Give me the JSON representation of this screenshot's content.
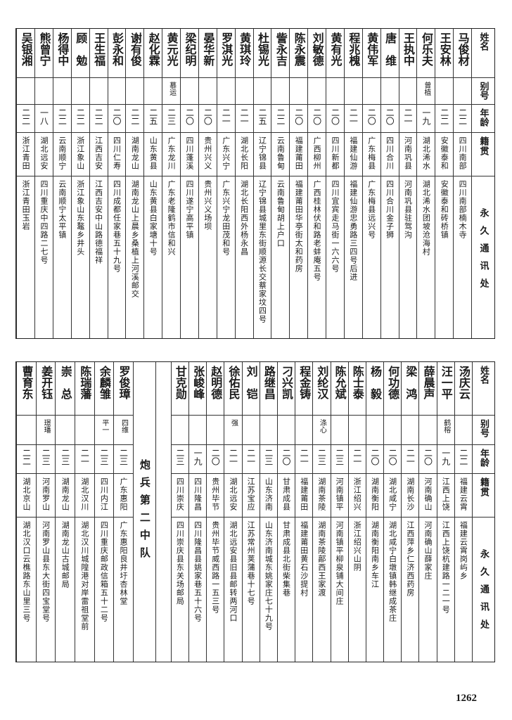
{
  "headers": {
    "name": "姓名",
    "alias": "别号",
    "age": "年龄",
    "origin": "籍贯",
    "address": "永久通讯处"
  },
  "top_table": {
    "rows": [
      {
        "name": "马俊材",
        "alias": "",
        "age": "二二",
        "origin": "四川南部",
        "address": "四川南部楠木寺"
      },
      {
        "name": "王安林",
        "alias": "",
        "age": "二二",
        "origin": "安徽泰和",
        "address": "安徽泰和砖桥镇"
      },
      {
        "name": "何乐夫",
        "alias": "曾植",
        "age": "一九",
        "origin": "湖北浠水",
        "address": "湖北浠水团坡沧海村"
      },
      {
        "name": "王执中",
        "alias": "",
        "age": "二一",
        "origin": "河南巩县",
        "address": "河南巩县驻驾沟"
      },
      {
        "name": "唐　维",
        "alias": "",
        "age": "二〇",
        "origin": "四川合川",
        "address": "四川合川金子狮"
      },
      {
        "name": "黄伟军",
        "alias": "",
        "age": "二〇",
        "origin": "广东梅县",
        "address": "广东梅县远兴号"
      },
      {
        "name": "程兆槐",
        "alias": "",
        "age": "二一",
        "origin": "福建仙游",
        "address": "福建仙游忠勇路三四号后进"
      },
      {
        "name": "黄有光",
        "alias": "",
        "age": "二〇",
        "origin": "四川新都",
        "address": "四川宜宾走马街一六六号"
      },
      {
        "name": "刘敏德",
        "alias": "",
        "age": "二〇",
        "origin": "广西柳州",
        "address": "广西桂林伏和路老蚌庵五号"
      },
      {
        "name": "陈永震",
        "alias": "",
        "age": "二〇",
        "origin": "福建莆田",
        "address": "福建莆田华亭街太和药房"
      },
      {
        "name": "訾永吉",
        "alias": "",
        "age": "二二",
        "origin": "云南鲁甸",
        "address": "云南鲁甸胡上户口"
      },
      {
        "name": "杜锡光",
        "alias": "",
        "age": "二五",
        "origin": "辽宁锦县",
        "address": "辽宁锦县城里东街顺源长交蔡家坟四号"
      },
      {
        "name": "黄琪玲",
        "alias": "",
        "age": "二一",
        "origin": "湖北长阳",
        "address": "湖北长阳西外杨永昌"
      },
      {
        "name": "罗淇光",
        "alias": "",
        "age": "二一",
        "origin": "广东兴宁",
        "address": "广东兴宁龙田茂和号"
      },
      {
        "name": "晏华新",
        "alias": "",
        "age": "二〇",
        "origin": "贵州兴义",
        "address": "贵州兴义场坝"
      },
      {
        "name": "梁纪明",
        "alias": "",
        "age": "二〇",
        "origin": "四川蓬溪",
        "address": "四川遂宁高平镇"
      },
      {
        "name": "黄元光",
        "alias": "慕运",
        "age": "二三",
        "origin": "广东龙川",
        "address": "广东老隆鹤市信和兴"
      },
      {
        "name": "赵化霖",
        "alias": "",
        "age": "二五",
        "origin": "山东黄县",
        "address": "山东黄县白家塘十号"
      },
      {
        "name": "谢有俊",
        "alias": "",
        "age": "二二",
        "origin": "湖南龙山",
        "address": "湖南龙山上晨乡桑植上河溪邮交"
      },
      {
        "name": "彭永和",
        "alias": "",
        "age": "二〇",
        "origin": "四川仁寿",
        "address": "四川成都任家巷五十九号"
      },
      {
        "name": "王生福",
        "alias": "",
        "age": "二二",
        "origin": "江西吉安",
        "address": "江西吉安中山路德福祥"
      },
      {
        "name": "顾　勉",
        "alias": "",
        "age": "二二",
        "origin": "浙江象山",
        "address": "浙江象山东鼇乡井头"
      },
      {
        "name": "杨得中",
        "alias": "",
        "age": "二二",
        "origin": "云南顺宁",
        "address": "云南顺宁太平镇"
      },
      {
        "name": "熊曾宁",
        "alias": "",
        "age": "一八",
        "origin": "湖北远安",
        "address": "四川重庆中四路二七号"
      },
      {
        "name": "吴银湘",
        "alias": "",
        "age": "二二",
        "origin": "浙江青田",
        "address": "浙江青田玉岩"
      }
    ]
  },
  "bottom_table": {
    "rows": [
      {
        "name": "汤庆云",
        "alias": "",
        "age": "二二",
        "origin": "福建云霄",
        "address": "福建云霄岗屿乡"
      },
      {
        "name": "汪一平",
        "alias": "鹤榕",
        "age": "一九",
        "origin": "江西上饶",
        "address": "江西上饶杭建路一二一号"
      },
      {
        "name": "薛晨声",
        "alias": "",
        "age": "二〇",
        "origin": "河南确山",
        "address": "河南确山薛家庄"
      },
      {
        "name": "梁　鸿",
        "alias": "",
        "age": "二一",
        "origin": "湖南长沙",
        "address": "江西萍乡仁济西药房"
      },
      {
        "name": "何功德",
        "alias": "",
        "age": "二〇",
        "origin": "湖北咸宁",
        "address": "湖北咸宁白墩镇韩继成茶庄"
      },
      {
        "name": "杨　毅",
        "alias": "",
        "age": "二〇",
        "origin": "湖南衡阳",
        "address": "湖南衡阳南乡车江"
      },
      {
        "name": "陈士泰",
        "alias": "",
        "age": "二一",
        "origin": "浙江绍兴",
        "address": "浙江绍兴山阴"
      },
      {
        "name": "陈允斌",
        "alias": "",
        "age": "二三",
        "origin": "河南镇平",
        "address": "河南镇平柳泉铺大间庄"
      },
      {
        "name": "刘纶汉",
        "alias": "涤心",
        "age": "二三",
        "origin": "湖南茶陵",
        "address": "湖南茶陵鄗西王家渡"
      },
      {
        "name": "程金铸",
        "alias": "",
        "age": "二一",
        "origin": "福建莆田",
        "address": "福建莆田黄石沙提村"
      },
      {
        "name": "刁兴凯",
        "alias": "",
        "age": "二〇",
        "origin": "甘肃成县",
        "address": "甘肃成县北街柴集巷"
      },
      {
        "name": "路继昌",
        "alias": "",
        "age": "二三",
        "origin": "山东济南",
        "address": "山东济南城东姚家庄七十九号"
      },
      {
        "name": "刘　铠",
        "alias": "",
        "age": "二一",
        "origin": "江苏宝应",
        "address": "江苏常州荚蒲巷十七号"
      },
      {
        "name": "徐佑民",
        "alias": "强",
        "age": "二一",
        "origin": "湖北远安",
        "address": "湖北远安县旧县邮转两河口"
      },
      {
        "name": "赵明德",
        "alias": "",
        "age": "二〇",
        "origin": "贵州毕节",
        "address": "贵州毕节威西路一五三号"
      },
      {
        "name": "张峻峰",
        "alias": "",
        "age": "一九",
        "origin": "四川隆昌",
        "address": "四川隆昌县姚家巷五十六号"
      },
      {
        "name": "甘克勋",
        "alias": "",
        "age": "二三",
        "origin": "四川崇庆",
        "address": "四川崇庆县东关场邮局"
      }
    ],
    "section_label": "炮兵第二中队",
    "rows_after": [
      {
        "name": "罗俊璋",
        "alias": "四维",
        "age": "二三",
        "origin": "广东惠阳",
        "address": "广东惠阳良井圩杏林堂"
      },
      {
        "name": "余麟雏",
        "alias": "平一",
        "age": "二三",
        "origin": "四川内江",
        "address": "四川重庆邮政信箱五十二号"
      },
      {
        "name": "陈瑞藩",
        "alias": "",
        "age": "二一",
        "origin": "湖北汉川",
        "address": "湖北汉川城隍港对岸雷祖堂前"
      },
      {
        "name": "崇　总",
        "alias": "",
        "age": "二三",
        "origin": "湖南龙山",
        "address": "湖南龙山古城邮局"
      },
      {
        "name": "姜开钰",
        "alias": "璟璠",
        "age": "二三",
        "origin": "河南罗山",
        "address": "河南罗山县东大街四宝堂号"
      },
      {
        "name": "曹育东",
        "alias": "",
        "age": "二二",
        "origin": "湖北京山",
        "address": "湖北汉口云樵路东山里三号"
      }
    ]
  },
  "page_number": "1262"
}
